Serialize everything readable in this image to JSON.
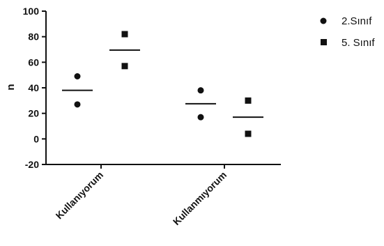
{
  "chart_data": {
    "type": "scatter",
    "ylabel": "n",
    "ylim": [
      -20,
      100
    ],
    "yticks": [
      -20,
      0,
      20,
      40,
      60,
      80,
      100
    ],
    "categories": [
      "Kullanıyorum",
      "Kullanmıyorum"
    ],
    "series": [
      {
        "name": "2.Sınıf",
        "marker": "circle",
        "color": "#111111",
        "points": [
          {
            "category": "Kullanıyorum",
            "values": [
              49,
              27
            ],
            "mean": 38
          },
          {
            "category": "Kullanmıyorum",
            "values": [
              38,
              17
            ],
            "mean": 27.5
          }
        ]
      },
      {
        "name": "5. Sınıf",
        "marker": "square",
        "color": "#111111",
        "points": [
          {
            "category": "Kullanıyorum",
            "values": [
              82,
              57
            ],
            "mean": 69.5
          },
          {
            "category": "Kullanmıyorum",
            "values": [
              30,
              4
            ],
            "mean": 17
          }
        ]
      }
    ],
    "legend_position": "top-right",
    "grid": false
  }
}
